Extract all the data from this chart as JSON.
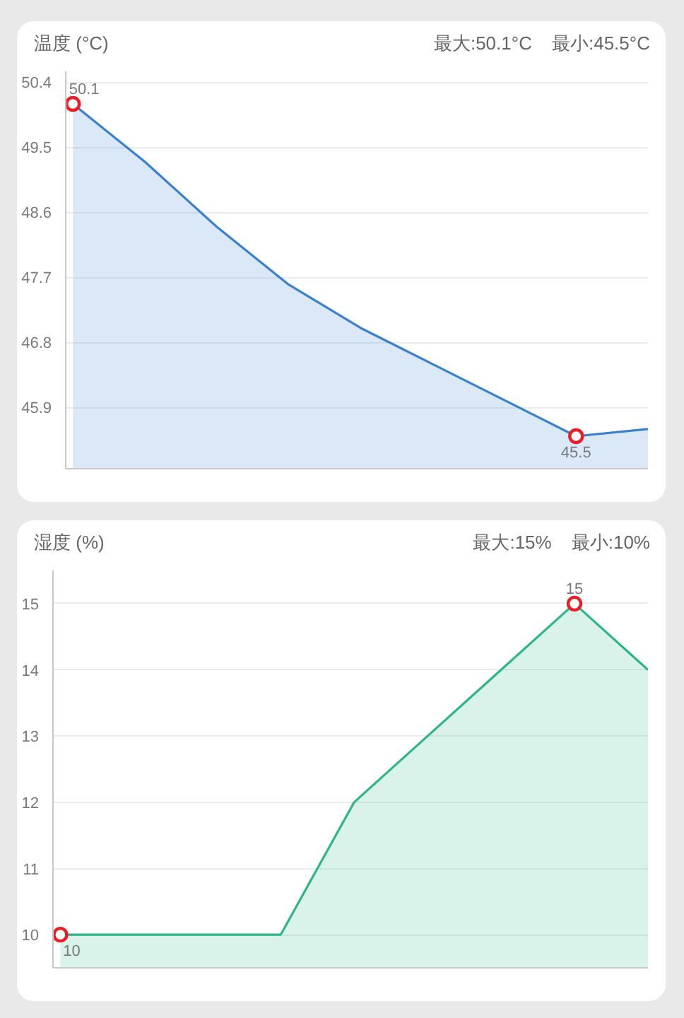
{
  "chart_data": [
    {
      "type": "area",
      "title": "温度 (°C)",
      "annotations": [
        "最大:50.1°C",
        "最小:45.5°C"
      ],
      "categories": [
        null,
        null,
        null,
        null,
        null,
        null,
        null,
        null,
        null
      ],
      "series": [
        {
          "color": "#3a80d0",
          "values": [
            50.1,
            49.3,
            48.4,
            47.6,
            47.0,
            46.5,
            46.0,
            45.5,
            45.6
          ]
        },
        {
          "type": "scatter",
          "marker": "circle",
          "color": "#ee1c25",
          "values": [
            50.1,
            null,
            null,
            null,
            null,
            null,
            null,
            45.5,
            null
          ],
          "value_labels": [
            "50.1",
            null,
            null,
            null,
            null,
            null,
            null,
            "45.5",
            null
          ]
        }
      ],
      "ylim": [
        45.05,
        50.55
      ],
      "yticks": [
        45.9,
        46.8,
        47.7,
        48.6,
        49.5,
        50.4
      ],
      "grid": "y",
      "tick_labels": "y"
    },
    {
      "type": "area",
      "title": "湿度 (%)",
      "annotations": [
        "最大:15%",
        "最小:10%"
      ],
      "categories": [
        null,
        null,
        null,
        null,
        null,
        null,
        null,
        null,
        null
      ],
      "series": [
        {
          "color": "#2fb58a",
          "values": [
            10,
            10,
            10,
            10,
            12,
            13,
            14,
            15,
            14
          ]
        },
        {
          "type": "scatter",
          "marker": "circle",
          "color": "#ee1c25",
          "values": [
            10,
            null,
            null,
            null,
            null,
            null,
            null,
            15,
            null
          ],
          "value_labels": [
            "10",
            null,
            null,
            null,
            null,
            null,
            null,
            "15",
            null
          ]
        }
      ],
      "ylim": [
        9.5,
        15.5
      ],
      "yticks": [
        10,
        11,
        12,
        13,
        14,
        15
      ],
      "grid": "y",
      "tick_labels": "y"
    }
  ]
}
